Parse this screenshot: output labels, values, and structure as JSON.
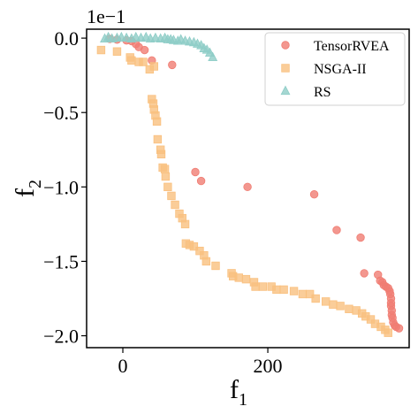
{
  "chart_data": {
    "type": "scatter",
    "title": "",
    "xlabel": "f",
    "xlabel_sub": "1",
    "ylabel": "f",
    "ylabel_sub": "2",
    "y_offset_label": "1e−1",
    "xlim": [
      -50,
      395
    ],
    "ylim": [
      -2.08,
      0.06
    ],
    "x_ticks": [
      0,
      200
    ],
    "x_tick_labels": [
      "0",
      "200"
    ],
    "y_ticks": [
      0.0,
      -0.5,
      -1.0,
      -1.5,
      -2.0
    ],
    "y_tick_labels": [
      "0.0",
      "−0.5",
      "−1.0",
      "−1.5",
      "−2.0"
    ],
    "grid": false,
    "legend_position": "top-right",
    "series": [
      {
        "name": "TensorRVEA",
        "color": "#f07d73",
        "marker": "circle",
        "points": [
          [
            -18,
            -0.005
          ],
          [
            -8,
            -0.01
          ],
          [
            5,
            -0.015
          ],
          [
            12,
            -0.02
          ],
          [
            18,
            -0.04
          ],
          [
            22,
            -0.06
          ],
          [
            30,
            -0.08
          ],
          [
            40,
            -0.15
          ],
          [
            68,
            -0.18
          ],
          [
            100,
            -0.9
          ],
          [
            108,
            -0.96
          ],
          [
            172,
            -1.0
          ],
          [
            264,
            -1.05
          ],
          [
            295,
            -1.29
          ],
          [
            328,
            -1.34
          ],
          [
            333,
            -1.58
          ],
          [
            352,
            -1.59
          ],
          [
            355,
            -1.63
          ],
          [
            358,
            -1.64
          ],
          [
            360,
            -1.66
          ],
          [
            363,
            -1.67
          ],
          [
            366,
            -1.68
          ],
          [
            368,
            -1.7
          ],
          [
            369,
            -1.72
          ],
          [
            370,
            -1.75
          ],
          [
            370,
            -1.78
          ],
          [
            370,
            -1.8
          ],
          [
            371,
            -1.83
          ],
          [
            371,
            -1.86
          ],
          [
            372,
            -1.88
          ],
          [
            373,
            -1.91
          ],
          [
            375,
            -1.93
          ],
          [
            377,
            -1.94
          ],
          [
            381,
            -1.95
          ]
        ]
      },
      {
        "name": "NSGA-II",
        "color": "#f9c07f",
        "marker": "square",
        "points": [
          [
            -30,
            -0.08
          ],
          [
            -8,
            -0.09
          ],
          [
            10,
            -0.13
          ],
          [
            12,
            -0.15
          ],
          [
            22,
            -0.16
          ],
          [
            28,
            -0.16
          ],
          [
            37,
            -0.21
          ],
          [
            43,
            -0.19
          ],
          [
            40,
            -0.41
          ],
          [
            42,
            -0.44
          ],
          [
            43,
            -0.48
          ],
          [
            45,
            -0.52
          ],
          [
            47,
            -0.56
          ],
          [
            48,
            -0.68
          ],
          [
            52,
            -0.75
          ],
          [
            53,
            -0.78
          ],
          [
            55,
            -0.87
          ],
          [
            58,
            -0.88
          ],
          [
            59,
            -0.93
          ],
          [
            62,
            -1.0
          ],
          [
            67,
            -1.06
          ],
          [
            72,
            -1.12
          ],
          [
            78,
            -1.18
          ],
          [
            82,
            -1.21
          ],
          [
            86,
            -1.25
          ],
          [
            87,
            -1.38
          ],
          [
            92,
            -1.39
          ],
          [
            98,
            -1.4
          ],
          [
            106,
            -1.43
          ],
          [
            112,
            -1.46
          ],
          [
            115,
            -1.5
          ],
          [
            128,
            -1.53
          ],
          [
            150,
            -1.58
          ],
          [
            152,
            -1.6
          ],
          [
            160,
            -1.61
          ],
          [
            170,
            -1.62
          ],
          [
            181,
            -1.64
          ],
          [
            183,
            -1.67
          ],
          [
            193,
            -1.67
          ],
          [
            205,
            -1.67
          ],
          [
            212,
            -1.69
          ],
          [
            222,
            -1.69
          ],
          [
            236,
            -1.7
          ],
          [
            248,
            -1.72
          ],
          [
            258,
            -1.72
          ],
          [
            266,
            -1.75
          ],
          [
            280,
            -1.77
          ],
          [
            290,
            -1.79
          ],
          [
            300,
            -1.8
          ],
          [
            312,
            -1.82
          ],
          [
            322,
            -1.83
          ],
          [
            330,
            -1.85
          ],
          [
            335,
            -1.87
          ],
          [
            342,
            -1.89
          ],
          [
            348,
            -1.92
          ],
          [
            356,
            -1.94
          ],
          [
            362,
            -1.96
          ],
          [
            366,
            -1.98
          ]
        ]
      },
      {
        "name": "RS",
        "color": "#8ecdc7",
        "marker": "triangle",
        "points": [
          [
            -25,
            -0.005
          ],
          [
            -20,
            0.005
          ],
          [
            -15,
            -0.005
          ],
          [
            -8,
            0.0
          ],
          [
            -2,
            0.005
          ],
          [
            5,
            0.0
          ],
          [
            12,
            -0.005
          ],
          [
            18,
            0.005
          ],
          [
            25,
            0.0
          ],
          [
            32,
            0.005
          ],
          [
            38,
            -0.005
          ],
          [
            45,
            0.0
          ],
          [
            52,
            -0.005
          ],
          [
            58,
            0.0
          ],
          [
            62,
            -0.01
          ],
          [
            66,
            -0.01
          ],
          [
            70,
            -0.015
          ],
          [
            76,
            -0.02
          ],
          [
            80,
            -0.01
          ],
          [
            86,
            -0.02
          ],
          [
            92,
            -0.025
          ],
          [
            98,
            -0.03
          ],
          [
            103,
            -0.04
          ],
          [
            108,
            -0.05
          ],
          [
            112,
            -0.07
          ],
          [
            116,
            -0.08
          ],
          [
            120,
            -0.1
          ],
          [
            124,
            -0.13
          ]
        ]
      }
    ]
  }
}
